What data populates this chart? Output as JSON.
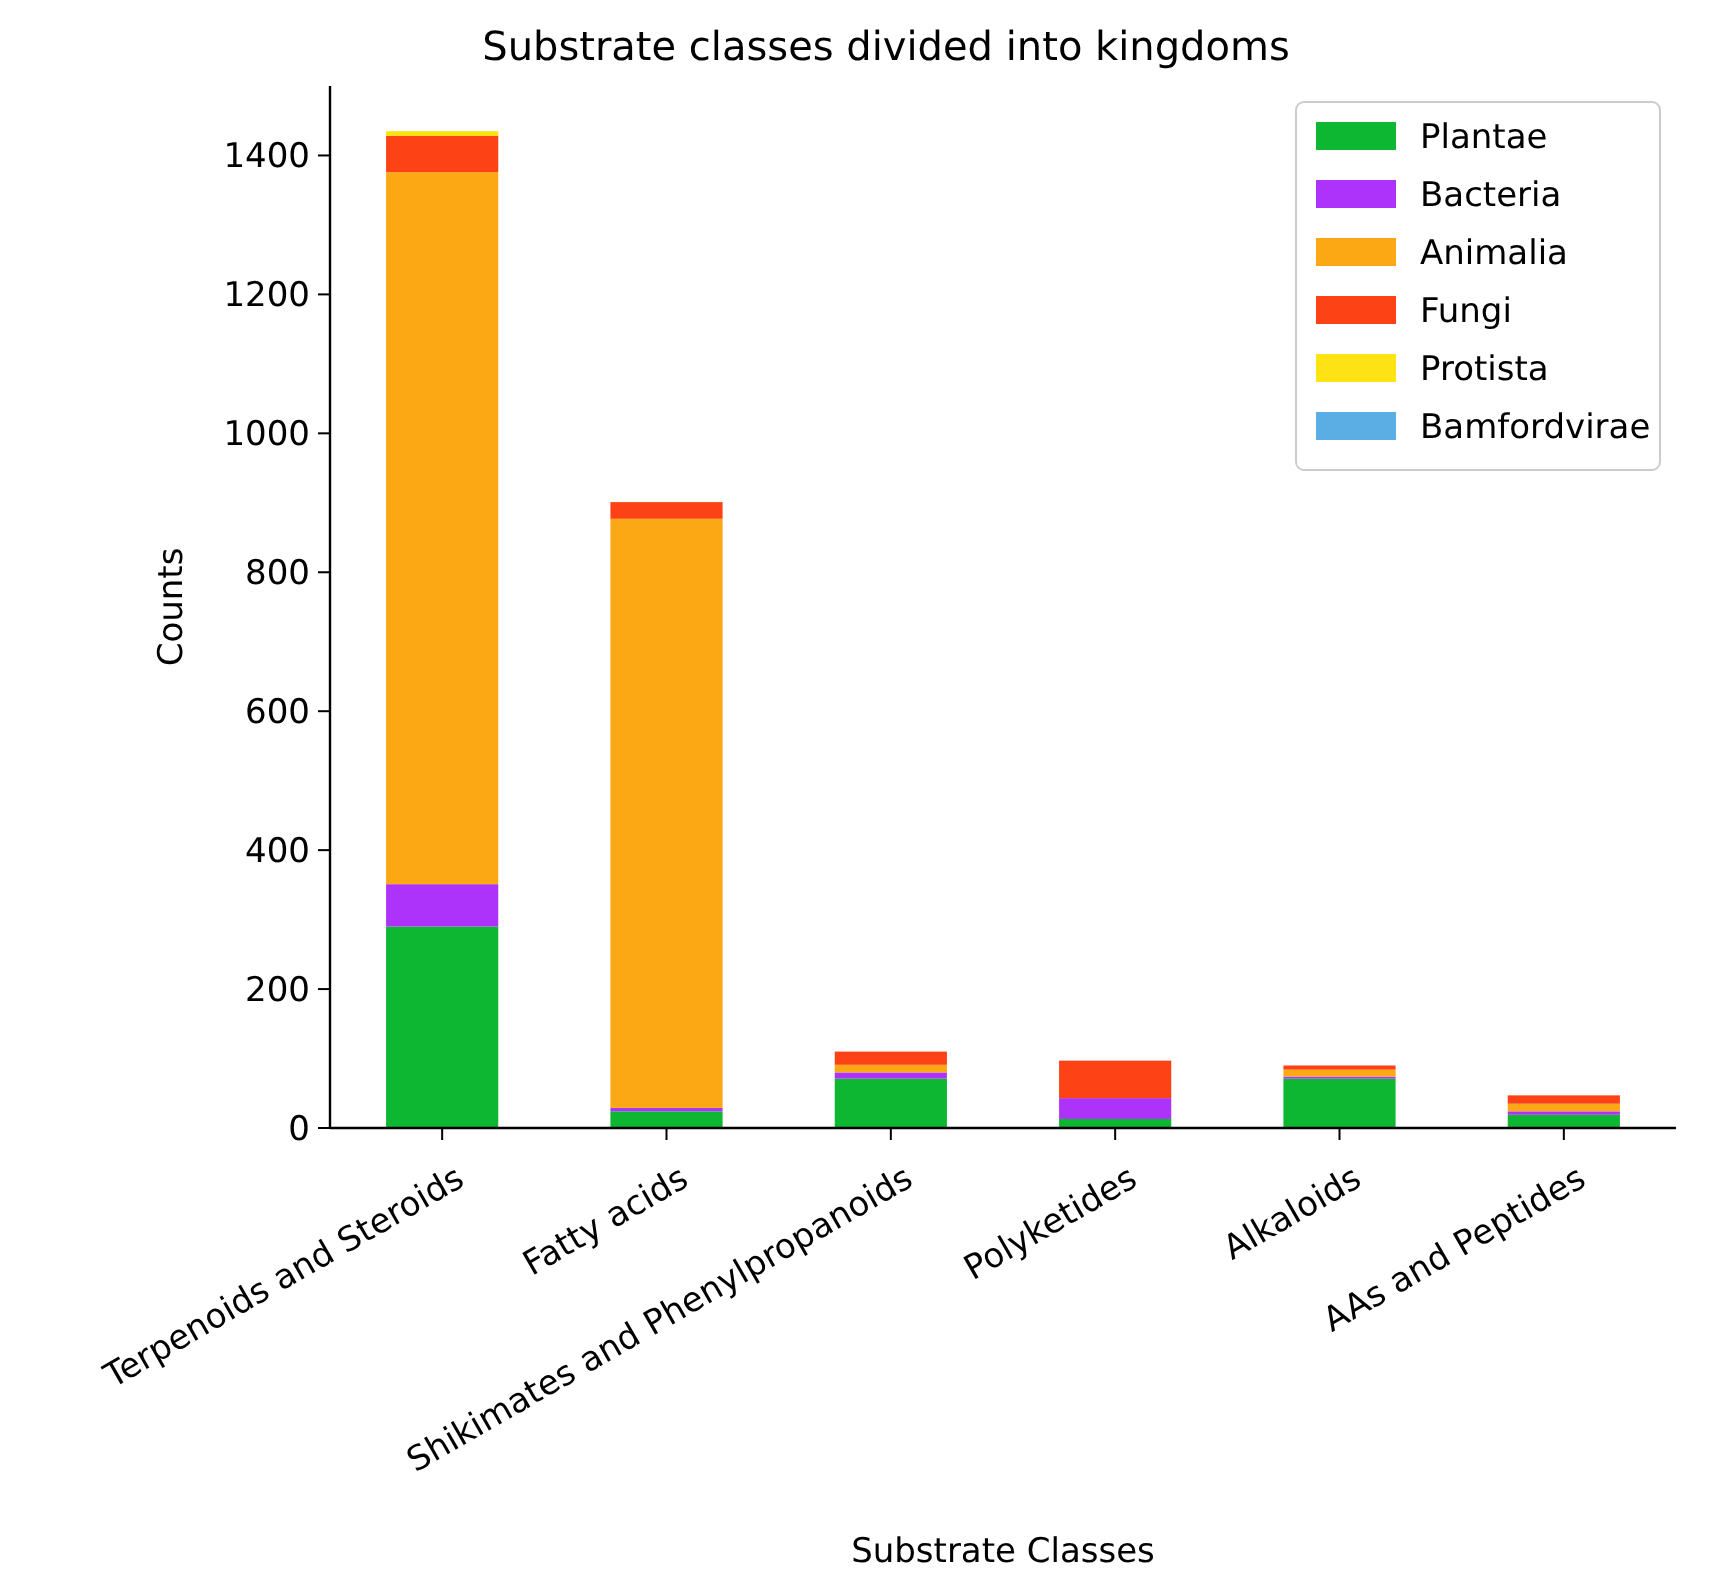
{
  "chart_data": {
    "type": "bar",
    "title": "Substrate classes divided into kingdoms",
    "xlabel": "Substrate Classes",
    "ylabel": "Counts",
    "stacked": true,
    "legend": "top right",
    "grid": false,
    "categories": [
      "Terpenoids and Steroids",
      "Fatty acids",
      "Shikimates and Phenylpropanoids",
      "Polyketides",
      "Alkaloids",
      "AAs and Peptides"
    ],
    "ylim": [
      0,
      1500
    ],
    "yticks": [
      0,
      200,
      400,
      600,
      800,
      1000,
      1200,
      1400
    ],
    "series": [
      {
        "name": "Plantae",
        "color": "#0db731",
        "values": [
          290,
          24,
          71,
          13,
          71,
          19
        ]
      },
      {
        "name": "Bacteria",
        "color": "#ad33fa",
        "values": [
          61,
          5,
          9,
          30,
          3,
          5
        ]
      },
      {
        "name": "Animalia",
        "color": "#fca714",
        "values": [
          1025,
          848,
          11,
          0,
          10,
          11
        ]
      },
      {
        "name": "Fungi",
        "color": "#fd4215",
        "values": [
          52,
          24,
          19,
          54,
          6,
          12
        ]
      },
      {
        "name": "Protista",
        "color": "#fde314",
        "values": [
          7,
          0,
          0,
          0,
          0,
          0
        ]
      },
      {
        "name": "Bamfordvirae",
        "color": "#5aaee3",
        "values": [
          0,
          0,
          0,
          0,
          0,
          0
        ]
      }
    ]
  }
}
